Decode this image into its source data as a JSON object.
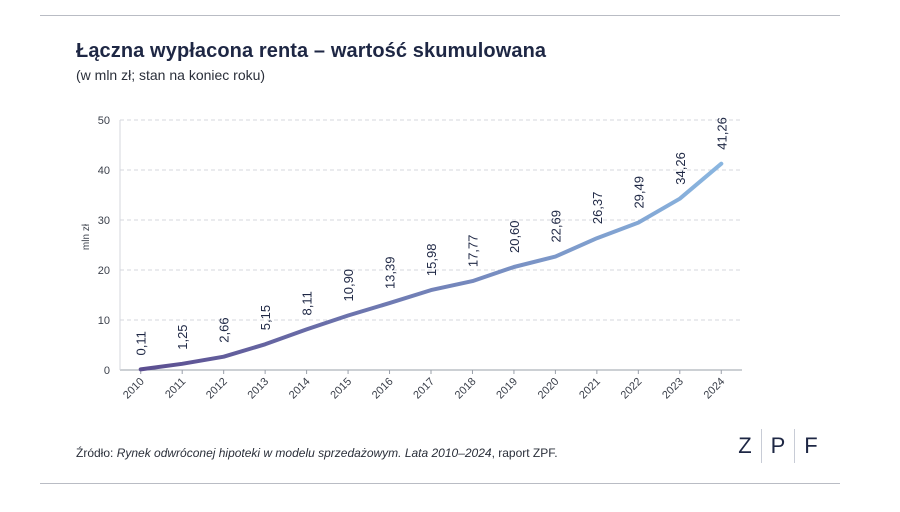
{
  "header": {
    "title": "Łączna wypłacona renta – wartość skumulowana",
    "subtitle": "(w mln zł; stan na koniec roku)"
  },
  "source": {
    "prefix": "Źródło: ",
    "italic": "Rynek odwróconej hipoteki w modelu sprzedażowym. Lata 2010–2024",
    "suffix": ", raport ZPF."
  },
  "logo": {
    "letters": [
      "Z",
      "P",
      "F"
    ]
  },
  "chart_data": {
    "type": "line",
    "title": "Łączna wypłacona renta – wartość skumulowana",
    "subtitle": "(w mln zł; stan na koniec roku)",
    "xlabel": "",
    "ylabel": "mln zł",
    "ylim": [
      0,
      50
    ],
    "yticks": [
      0,
      10,
      20,
      30,
      40,
      50
    ],
    "grid": true,
    "x": [
      "2010",
      "2011",
      "2012",
      "2013",
      "2014",
      "2015",
      "2016",
      "2017",
      "2018",
      "2019",
      "2020",
      "2021",
      "2022",
      "2023",
      "2024"
    ],
    "values": [
      0.11,
      1.25,
      2.66,
      5.15,
      8.11,
      10.9,
      13.39,
      15.98,
      17.77,
      20.6,
      22.69,
      26.37,
      29.49,
      34.26,
      41.26
    ],
    "data_labels": [
      "0,11",
      "1,25",
      "2,66",
      "5,15",
      "8,11",
      "10,90",
      "13,39",
      "15,98",
      "17,77",
      "20,60",
      "22,69",
      "26,37",
      "29,49",
      "34,26",
      "41,26"
    ],
    "colors": {
      "start": "#5b4e90",
      "end": "#8ab6e0",
      "grid": "#d4d7dd",
      "axis": "#9aa0aa"
    }
  }
}
